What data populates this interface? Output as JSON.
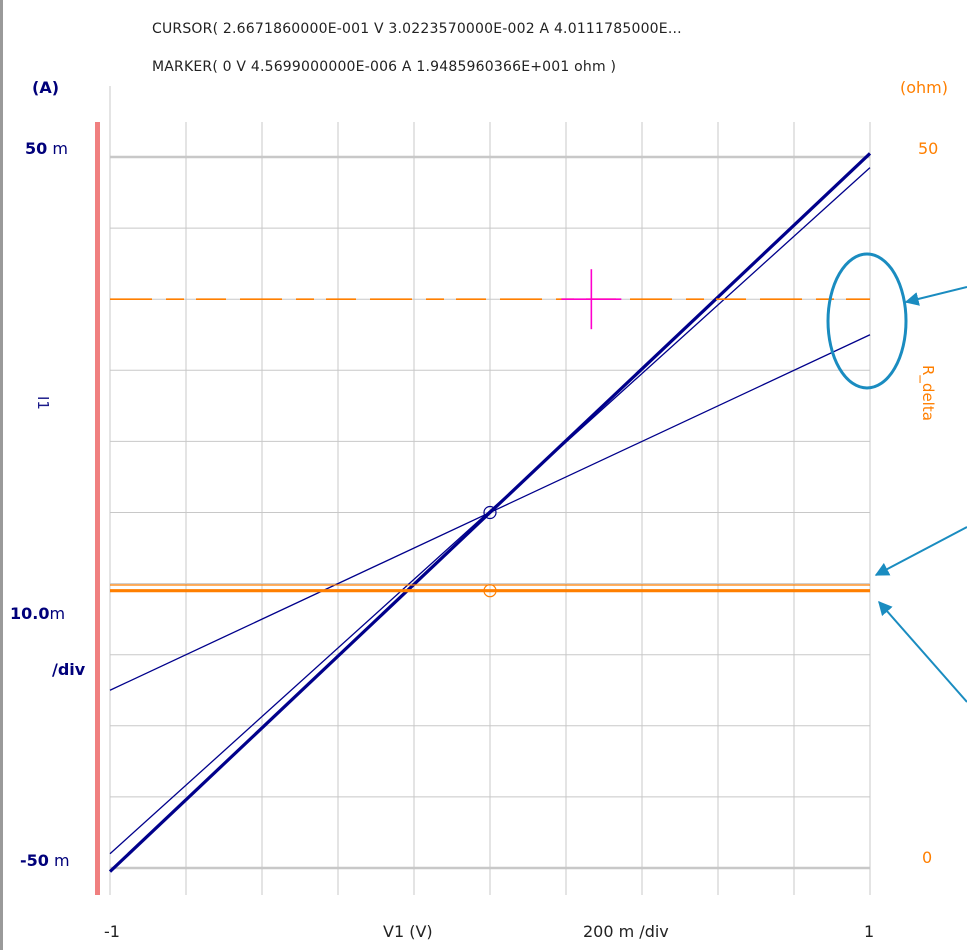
{
  "readouts": {
    "cursor": "CURSOR(   2.6671860000E-001  V    3.0223570000E-002  A    4.0111785000E...",
    "marker": "MARKER(   0  V     4.5699000000E-006  A     1.9485960366E+001  ohm  )"
  },
  "left_axis": {
    "unit": "(A)",
    "top_value": "50",
    "top_unit": "m",
    "bottom_value": "-50",
    "bottom_unit": "m",
    "scale_value": "10.0",
    "scale_unit": "m",
    "per_div": "/div",
    "name": "I1"
  },
  "right_axis": {
    "unit": "(ohm)",
    "top_value": "50",
    "bottom_value": "0",
    "name": "R_delta"
  },
  "x_axis": {
    "min_label": "-1",
    "max_label": "1",
    "name": "V1  (V)",
    "per_div": "200 m /div"
  },
  "colors": {
    "current_trace": "#00008b",
    "resistance_trace": "#ff7f00",
    "grid": "#c8c8c8",
    "left_axis_bar": "#f08080",
    "cursor_mark": "#ff00cc",
    "annotation": "#1a8cc0"
  },
  "chart_data": {
    "type": "line",
    "xlim": [
      -1,
      1
    ],
    "ylim_left": [
      -50,
      50
    ],
    "ylim_right": [
      0,
      50
    ],
    "grid": true,
    "divisions": 10,
    "series": [
      {
        "axis": "left",
        "style": "bold",
        "x": [
          -1,
          1
        ],
        "y": [
          -50.5,
          50.5
        ]
      },
      {
        "axis": "left",
        "style": "thin",
        "x": [
          -1,
          1
        ],
        "y": [
          -48,
          48.5
        ]
      },
      {
        "axis": "left",
        "style": "thin",
        "x": [
          -1,
          1
        ],
        "y": [
          -25,
          25
        ]
      },
      {
        "axis": "right",
        "style": "dashed",
        "x": [
          -1,
          1
        ],
        "y": [
          40,
          40
        ]
      },
      {
        "axis": "right",
        "style": "thin",
        "x": [
          -1,
          1
        ],
        "y": [
          19.9,
          19.9
        ]
      },
      {
        "axis": "right",
        "style": "bold",
        "x": [
          -1,
          1
        ],
        "y": [
          19.5,
          19.5
        ]
      }
    ],
    "marker": {
      "x": 0,
      "y_left": 0,
      "y_right": 19.5
    },
    "cursor": {
      "x": 0.2667,
      "y_right": 40
    }
  }
}
